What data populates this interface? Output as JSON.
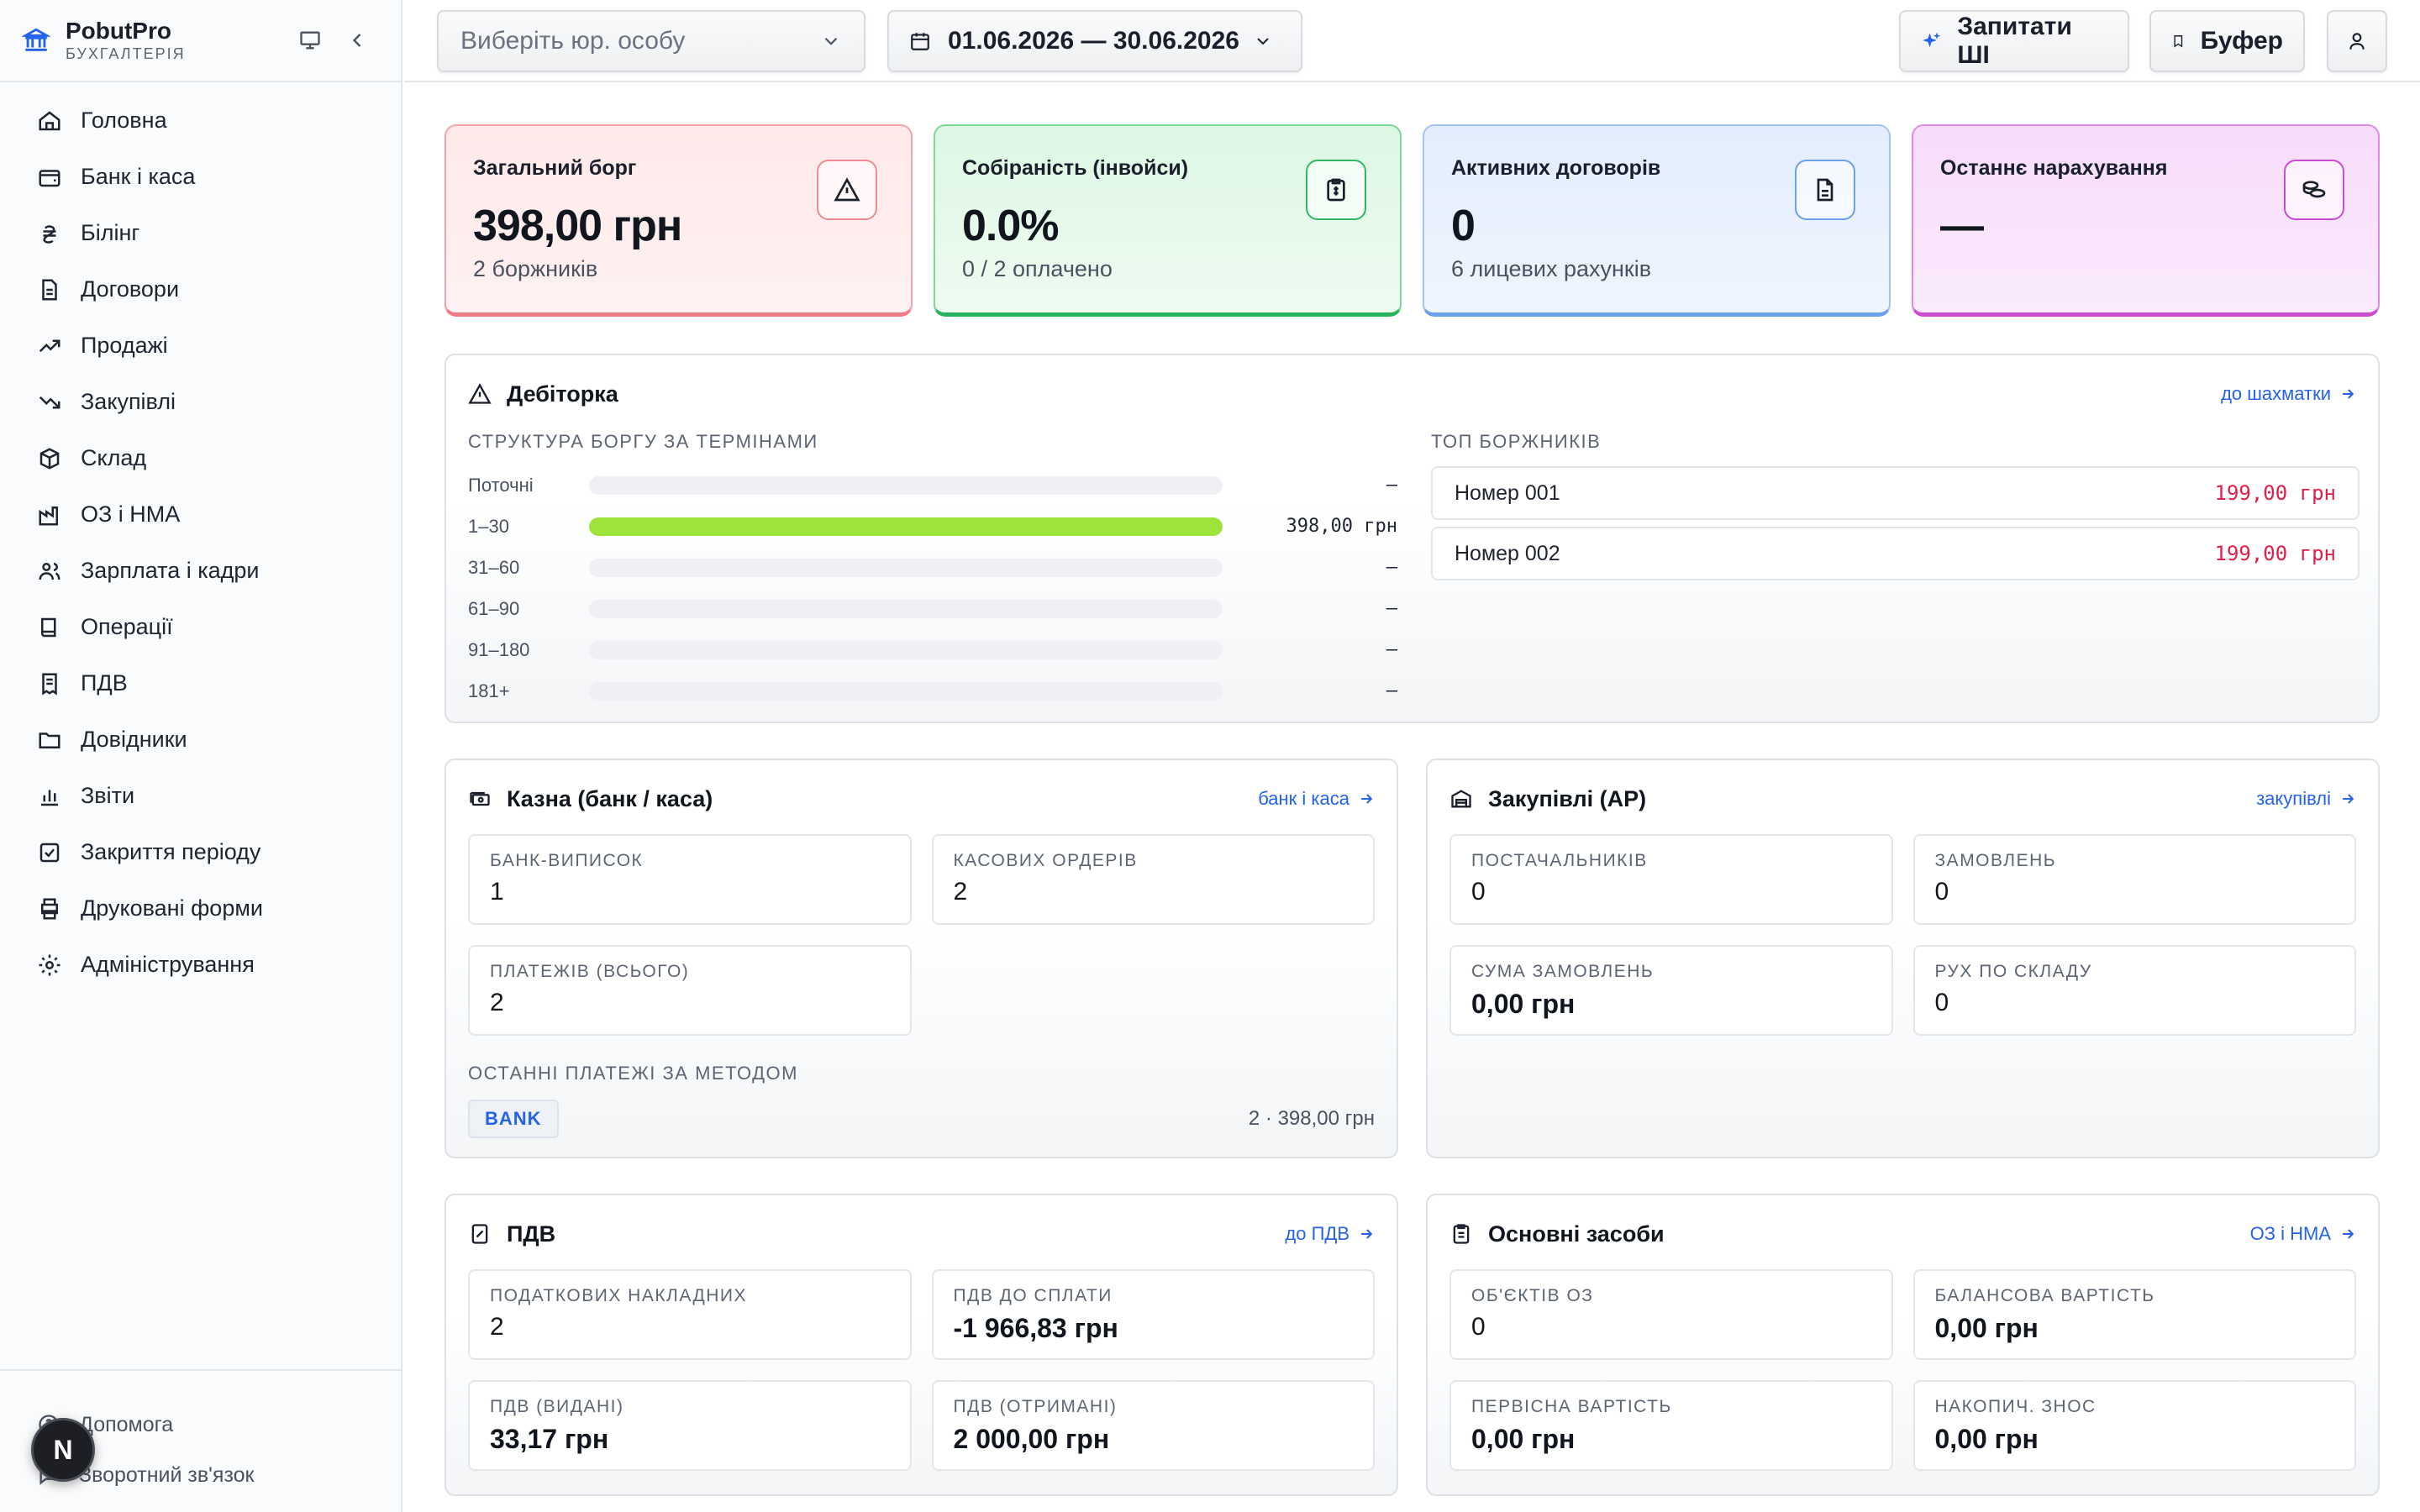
{
  "app": {
    "name": "PobutPro",
    "subtitle": "БУХГАЛТЕРІЯ"
  },
  "sidebar": {
    "items": [
      {
        "label": "Головна",
        "icon": "home-icon"
      },
      {
        "label": "Банк і каса",
        "icon": "wallet-icon"
      },
      {
        "label": "Білінг",
        "icon": "hryvnia-icon"
      },
      {
        "label": "Договори",
        "icon": "file-text-icon"
      },
      {
        "label": "Продажі",
        "icon": "trending-up-icon"
      },
      {
        "label": "Закупівлі",
        "icon": "trending-down-icon"
      },
      {
        "label": "Склад",
        "icon": "package-icon"
      },
      {
        "label": "ОЗ і НМА",
        "icon": "factory-icon"
      },
      {
        "label": "Зарплата і кадри",
        "icon": "users-icon"
      },
      {
        "label": "Операції",
        "icon": "book-icon"
      },
      {
        "label": "ПДВ",
        "icon": "receipt-icon"
      },
      {
        "label": "Довідники",
        "icon": "folder-icon"
      },
      {
        "label": "Звіти",
        "icon": "bar-chart-icon"
      },
      {
        "label": "Закриття періоду",
        "icon": "check-square-icon"
      },
      {
        "label": "Друковані форми",
        "icon": "printer-icon"
      },
      {
        "label": "Адміністрування",
        "icon": "settings-icon"
      }
    ],
    "bottom": [
      {
        "label": "Допомога",
        "icon": "help-circle-icon"
      },
      {
        "label": "Зворотний зв'язок",
        "icon": "message-icon"
      }
    ],
    "avatar_letter": "N"
  },
  "topbar": {
    "entity_placeholder": "Виберіть юр. особу",
    "date_range": "01.06.2026 — 30.06.2026",
    "ask_ai": "Запитати ШІ",
    "buffer": "Буфер"
  },
  "kpis": [
    {
      "label": "Загальний борг",
      "value": "398,00 грн",
      "sub": "2 боржників",
      "icon": "alert-triangle-icon"
    },
    {
      "label": "Собіраність (інвойси)",
      "value": "0.0%",
      "sub": "0 / 2 оплачено",
      "icon": "clipboard-icon"
    },
    {
      "label": "Активних договорів",
      "value": "0",
      "sub": "6 лицевих рахунків",
      "icon": "file-icon"
    },
    {
      "label": "Останнє нарахування",
      "value": "—",
      "sub": "",
      "icon": "coins-icon"
    }
  ],
  "debitorka": {
    "title": "Дебіторка",
    "link": "до шахматки",
    "aging_caption": "СТРУКТУРА БОРГУ ЗА ТЕРМІНАМИ",
    "aging": [
      {
        "label": "Поточні",
        "value": "—",
        "fraction": 0
      },
      {
        "label": "1–30",
        "value": "398,00 грн",
        "fraction": 1
      },
      {
        "label": "31–60",
        "value": "—",
        "fraction": 0
      },
      {
        "label": "61–90",
        "value": "—",
        "fraction": 0
      },
      {
        "label": "91–180",
        "value": "—",
        "fraction": 0
      },
      {
        "label": "181+",
        "value": "—",
        "fraction": 0
      }
    ],
    "top_caption": "ТОП БОРЖНИКІВ",
    "top": [
      {
        "name": "Номер 001",
        "amount": "199,00 грн"
      },
      {
        "name": "Номер 002",
        "amount": "199,00 грн"
      }
    ]
  },
  "kazna": {
    "title": "Казна (банк / каса)",
    "link": "банк і каса",
    "stats": [
      {
        "label": "БАНК-ВИПИСОК",
        "value": "1"
      },
      {
        "label": "КАСОВИХ ОРДЕРІВ",
        "value": "2"
      },
      {
        "label": "ПЛАТЕЖІВ (ВСЬОГО)",
        "value": "2"
      }
    ],
    "methods_caption": "ОСТАННІ ПЛАТЕЖІ ЗА МЕТОДОМ",
    "methods": [
      {
        "name": "BANK",
        "summary": "2 · 398,00 грн"
      }
    ]
  },
  "zakupivli": {
    "title": "Закупівлі (AP)",
    "link": "закупівлі",
    "stats": [
      {
        "label": "ПОСТАЧАЛЬНИКІВ",
        "value": "0"
      },
      {
        "label": "ЗАМОВЛЕНЬ",
        "value": "0"
      },
      {
        "label": "СУМА ЗАМОВЛЕНЬ",
        "value": "0,00 грн"
      },
      {
        "label": "РУХ ПО СКЛАДУ",
        "value": "0"
      }
    ]
  },
  "pdv": {
    "title": "ПДВ",
    "link": "до ПДВ",
    "stats": [
      {
        "label": "ПОДАТКОВИХ НАКЛАДНИХ",
        "value": "2"
      },
      {
        "label": "ПДВ ДО СПЛАТИ",
        "value": "-1 966,83 грн"
      },
      {
        "label": "ПДВ (ВИДАНІ)",
        "value": "33,17 грн"
      },
      {
        "label": "ПДВ (ОТРИМАНІ)",
        "value": "2 000,00 грн"
      }
    ]
  },
  "os": {
    "title": "Основні засоби",
    "link": "ОЗ і НМА",
    "stats": [
      {
        "label": "ОБ'ЄКТІВ ОЗ",
        "value": "0"
      },
      {
        "label": "БАЛАНСОВА ВАРТІСТЬ",
        "value": "0,00 грн"
      },
      {
        "label": "ПЕРВІСНА ВАРТІСТЬ",
        "value": "0,00 грн"
      },
      {
        "label": "НАКОПИЧ. ЗНОС",
        "value": "0,00 грн"
      }
    ]
  },
  "colors": {
    "accent": "#2563eb",
    "debt_red": "#e11d48",
    "bar_green": "#9ee33a"
  }
}
